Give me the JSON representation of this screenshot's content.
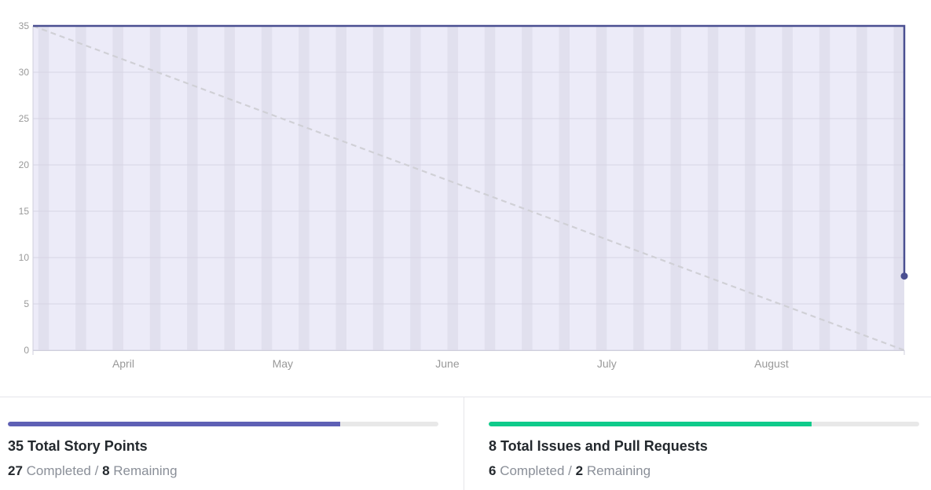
{
  "chart_data": {
    "type": "line",
    "title": "",
    "xlabel": "",
    "ylabel": "",
    "ylim": [
      0,
      35
    ],
    "y_ticks": [
      0,
      5,
      10,
      15,
      20,
      25,
      30,
      35
    ],
    "x_range": [
      "2024-03-15",
      "2024-08-26"
    ],
    "x_tick_labels": [
      {
        "date": "2024-04-01",
        "label": "April"
      },
      {
        "date": "2024-05-01",
        "label": "May"
      },
      {
        "date": "2024-06-01",
        "label": "June"
      },
      {
        "date": "2024-07-01",
        "label": "July"
      },
      {
        "date": "2024-08-01",
        "label": "August"
      }
    ],
    "weekend_bands": true,
    "grid": true,
    "series": [
      {
        "style": "dashed",
        "color": "#d0d0d6",
        "points": [
          {
            "x": "2024-03-15",
            "y": 35
          },
          {
            "x": "2024-08-26",
            "y": 0
          }
        ]
      },
      {
        "style": "solid",
        "color": "#4a4f91",
        "points": [
          {
            "x": "2024-03-15",
            "y": 35
          },
          {
            "x": "2024-08-26",
            "y": 35
          },
          {
            "x": "2024-08-26",
            "y": 8
          }
        ]
      }
    ]
  },
  "colors": {
    "plot_bg": "#ecebf8",
    "weekend_band": "#e1e0ee",
    "story_points_bar": "#5e60b5",
    "issues_bar": "#0fcb8b"
  },
  "stats": {
    "story_points": {
      "title": "35 Total Story Points",
      "completed": "27",
      "completed_label": "Completed",
      "separator": "/",
      "remaining": "8",
      "remaining_label": "Remaining",
      "progress": 0.7714
    },
    "issues": {
      "title": "8 Total Issues and Pull Requests",
      "completed": "6",
      "completed_label": "Completed",
      "separator": "/",
      "remaining": "2",
      "remaining_label": "Remaining",
      "progress": 0.75
    }
  }
}
